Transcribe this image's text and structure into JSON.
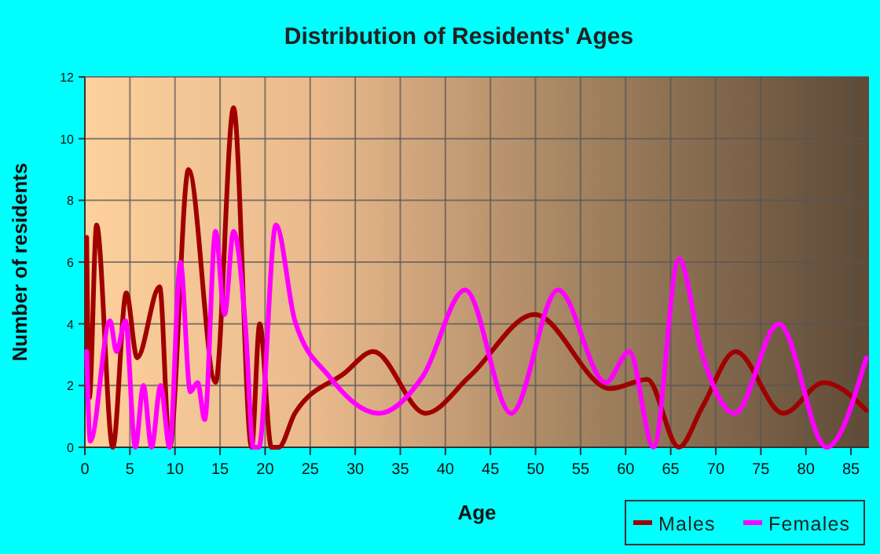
{
  "chart_data": {
    "type": "line",
    "title": "Distribution of Residents' Ages",
    "xlabel": "Age",
    "ylabel": "Number of residents",
    "xlim": [
      0,
      87
    ],
    "xticks": [
      0,
      5,
      10,
      15,
      20,
      25,
      30,
      35,
      40,
      45,
      50,
      55,
      60,
      65,
      70,
      75,
      80,
      85
    ],
    "ylim": [
      0,
      12
    ],
    "yticks": [
      0,
      2,
      4,
      6,
      8,
      10,
      12
    ],
    "grid": true,
    "legend": "bottom right",
    "marker": "none",
    "line_style": "solid",
    "series": [
      {
        "name": "Males",
        "color": "#a00000",
        "x": [
          0.2,
          0.5,
          1.3,
          3.1,
          4.6,
          5.8,
          8.3,
          9.4,
          11.5,
          14.5,
          16.5,
          18.5,
          19.4,
          20.7,
          21.5,
          23.3,
          28.8,
          32,
          37.8,
          42.7,
          49.9,
          58.3,
          62.4,
          65.9,
          68.5,
          72.2,
          77.5,
          82,
          86.7
        ],
        "values": [
          6.8,
          1.6,
          7.2,
          0,
          5,
          2.9,
          5.2,
          0,
          9,
          2.1,
          11,
          0,
          4,
          0,
          0,
          1.1,
          2.4,
          3.1,
          1.1,
          2.3,
          4.3,
          1.9,
          2.2,
          0,
          1.3,
          3.1,
          1.1,
          2.1,
          1.2
        ]
      },
      {
        "name": "Females",
        "color": "#ff00ff",
        "x": [
          0.2,
          0.6,
          2.8,
          3.5,
          4.5,
          5.6,
          6.5,
          7.4,
          8.4,
          9.4,
          10.6,
          11.7,
          12.5,
          13.3,
          14.5,
          15.5,
          16.5,
          17.8,
          18.7,
          19.3,
          21.2,
          23.3,
          27.1,
          32.6,
          37.5,
          42.2,
          47.3,
          52.5,
          57.8,
          60.4,
          63.1,
          65.9,
          68.5,
          72.1,
          77,
          82.3,
          86.7
        ],
        "values": [
          3.1,
          0.2,
          4.1,
          3.1,
          4.1,
          0,
          2,
          0,
          2,
          0,
          6,
          1.8,
          2.1,
          0.9,
          7,
          4.3,
          7,
          4,
          0,
          0,
          7.2,
          4.1,
          2.3,
          1.1,
          2.3,
          5.1,
          1.1,
          5.1,
          2.1,
          3.1,
          0,
          6.1,
          3,
          1.1,
          4,
          0,
          2.9
        ]
      }
    ]
  }
}
